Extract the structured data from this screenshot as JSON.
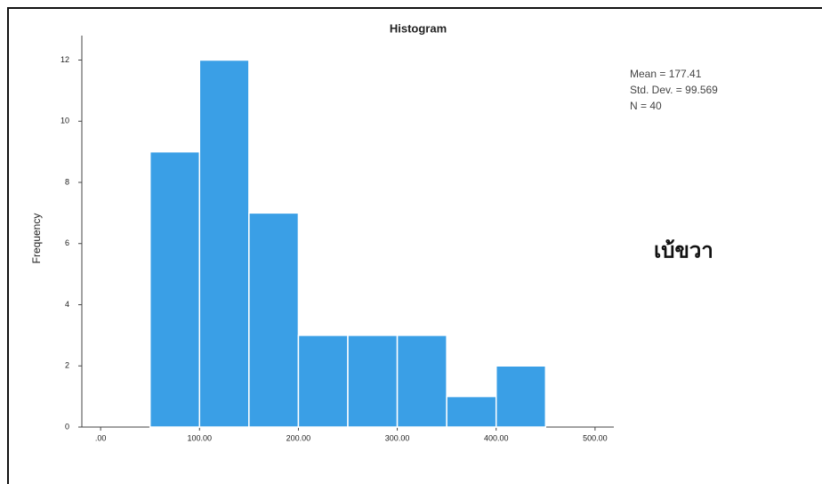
{
  "chart_data": {
    "type": "histogram",
    "title": "Histogram",
    "ylabel": "Frequency",
    "bins": [
      50,
      100,
      150,
      200,
      250,
      300,
      350,
      400,
      450
    ],
    "values": [
      9,
      12,
      7,
      3,
      3,
      3,
      1,
      2
    ],
    "color": "#3a9fe6",
    "xlim": [
      -19,
      519
    ],
    "xticks": [
      {
        "value": 0,
        "label": ".00"
      },
      {
        "value": 100,
        "label": "100.00"
      },
      {
        "value": 200,
        "label": "200.00"
      },
      {
        "value": 300,
        "label": "300.00"
      },
      {
        "value": 400,
        "label": "400.00"
      },
      {
        "value": 500,
        "label": "500.00"
      }
    ],
    "ylim": [
      0,
      12.8
    ],
    "yticks": [
      0,
      2,
      4,
      6,
      8,
      10,
      12
    ],
    "stats": [
      "Mean = 177.41",
      "Std. Dev. = 99.569",
      "N = 40"
    ],
    "annotation": "เบ้ขวา"
  }
}
